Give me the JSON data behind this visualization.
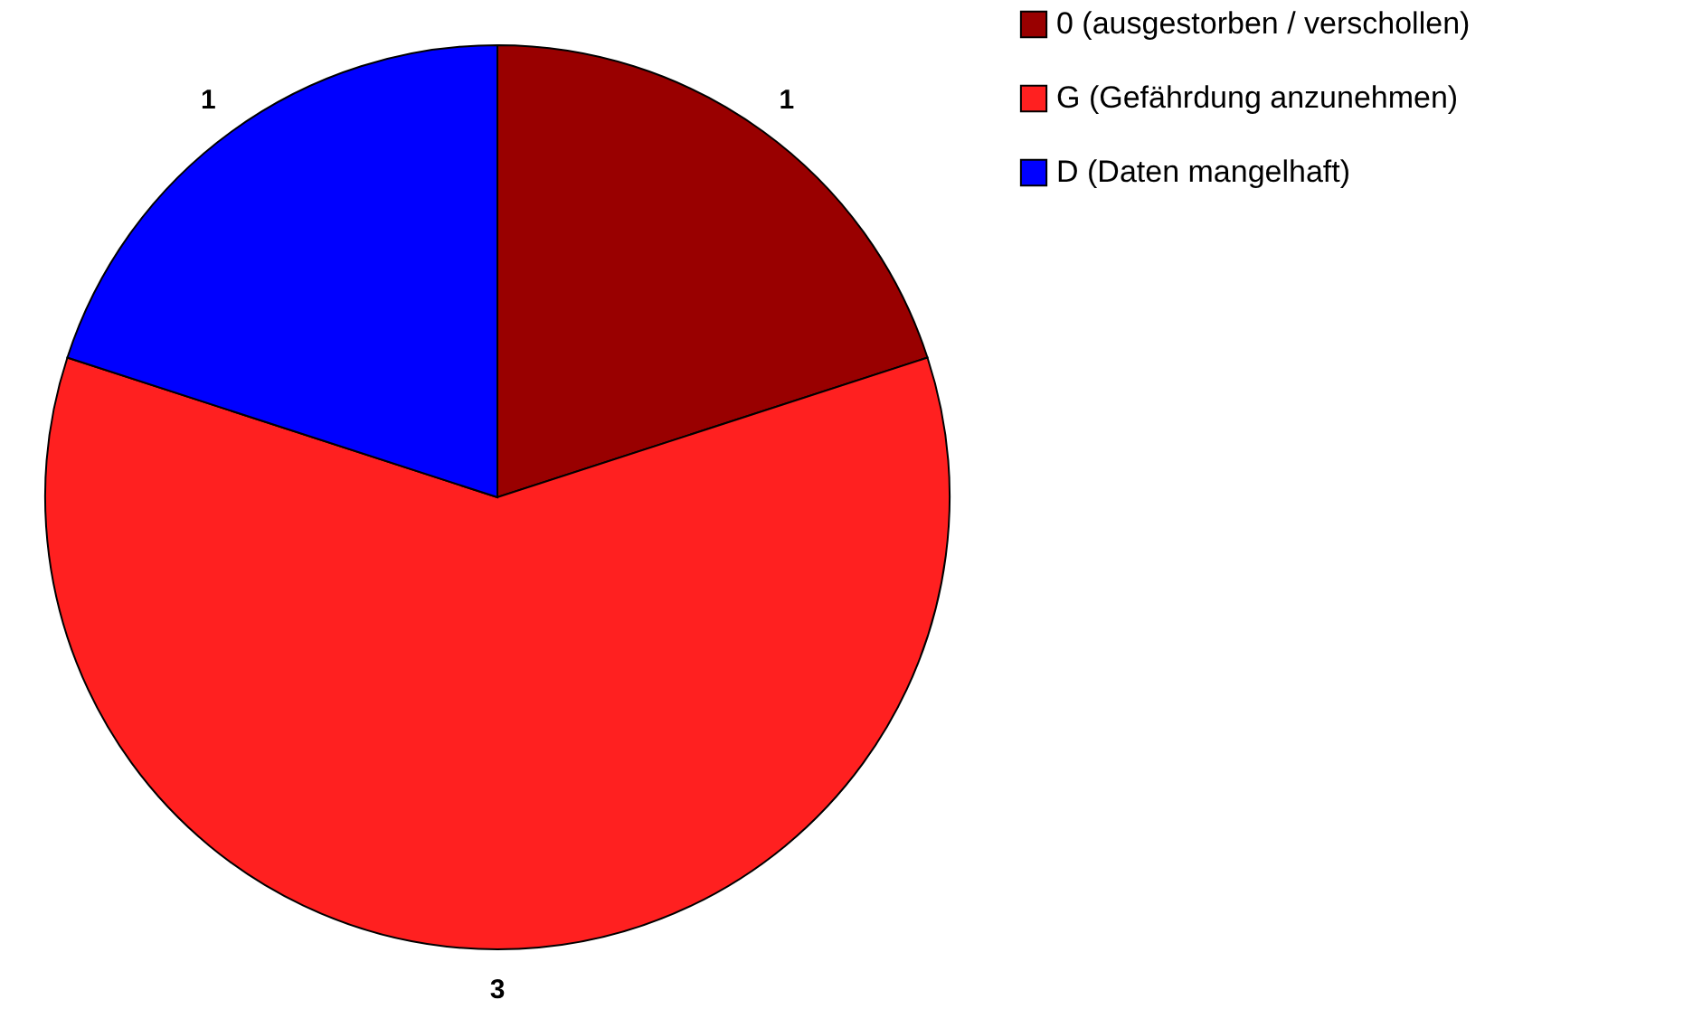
{
  "chart_data": {
    "type": "pie",
    "categories": [
      "0 (ausgestorben / verschollen)",
      "G (Gefährdung anzunehmen)",
      "D (Daten mangelhaft)"
    ],
    "values": [
      1,
      3,
      1
    ],
    "colors": [
      "#990000",
      "#ff2020",
      "#0000ff"
    ],
    "data_labels": true,
    "legend": "right"
  }
}
